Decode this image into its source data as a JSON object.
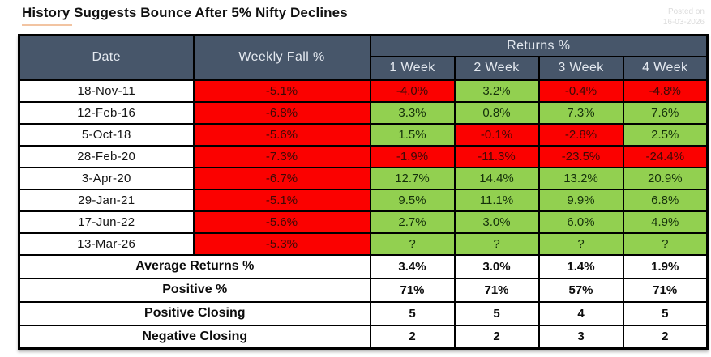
{
  "page": {
    "title": "History Suggests Bounce After 5% Nifty Declines",
    "posted_label": "Posted on",
    "posted_date": "16-03-2026"
  },
  "colors": {
    "header-bg": "#47566a",
    "header-text": "#e4e9f0",
    "neg-bg": "#fb0100",
    "pos-bg": "#92d050",
    "neg-text": "#3d0a06",
    "pos-text": "#15300b",
    "border": "#000000",
    "title-underline": "#f2c4a2",
    "posted-text": "#dcdcdc"
  },
  "chart_data": {
    "type": "table",
    "title": "History Suggests Bounce After 5% Nifty Declines",
    "headers": {
      "date": "Date",
      "weekly_fall": "Weekly Fall %",
      "returns_group": "Returns %",
      "weeks": [
        "1 Week",
        "2 Week",
        "3 Week",
        "4 Week"
      ]
    },
    "rows": [
      {
        "date": "18-Nov-11",
        "fall": "-5.1%",
        "w1": "-4.0%",
        "w2": "3.2%",
        "w3": "-0.4%",
        "w4": "-4.8%"
      },
      {
        "date": "12-Feb-16",
        "fall": "-6.8%",
        "w1": "3.3%",
        "w2": "0.8%",
        "w3": "7.3%",
        "w4": "7.6%"
      },
      {
        "date": "5-Oct-18",
        "fall": "-5.6%",
        "w1": "1.5%",
        "w2": "-0.1%",
        "w3": "-2.8%",
        "w4": "2.5%"
      },
      {
        "date": "28-Feb-20",
        "fall": "-7.3%",
        "w1": "-1.9%",
        "w2": "-11.3%",
        "w3": "-23.5%",
        "w4": "-24.4%"
      },
      {
        "date": "3-Apr-20",
        "fall": "-6.7%",
        "w1": "12.7%",
        "w2": "14.4%",
        "w3": "13.2%",
        "w4": "20.9%"
      },
      {
        "date": "29-Jan-21",
        "fall": "-5.1%",
        "w1": "9.5%",
        "w2": "11.1%",
        "w3": "9.9%",
        "w4": "6.8%"
      },
      {
        "date": "17-Jun-22",
        "fall": "-5.6%",
        "w1": "2.7%",
        "w2": "3.0%",
        "w3": "6.0%",
        "w4": "4.9%"
      },
      {
        "date": "13-Mar-26",
        "fall": "-5.3%",
        "w1": "?",
        "w2": "?",
        "w3": "?",
        "w4": "?"
      }
    ],
    "summary": [
      {
        "label": "Average Returns %",
        "w1": "3.4%",
        "w2": "3.0%",
        "w3": "1.4%",
        "w4": "1.9%"
      },
      {
        "label": "Positive %",
        "w1": "71%",
        "w2": "71%",
        "w3": "57%",
        "w4": "71%"
      },
      {
        "label": "Positive Closing",
        "w1": "5",
        "w2": "5",
        "w3": "4",
        "w4": "5"
      },
      {
        "label": "Negative Closing",
        "w1": "2",
        "w2": "2",
        "w3": "3",
        "w4": "2"
      }
    ]
  }
}
